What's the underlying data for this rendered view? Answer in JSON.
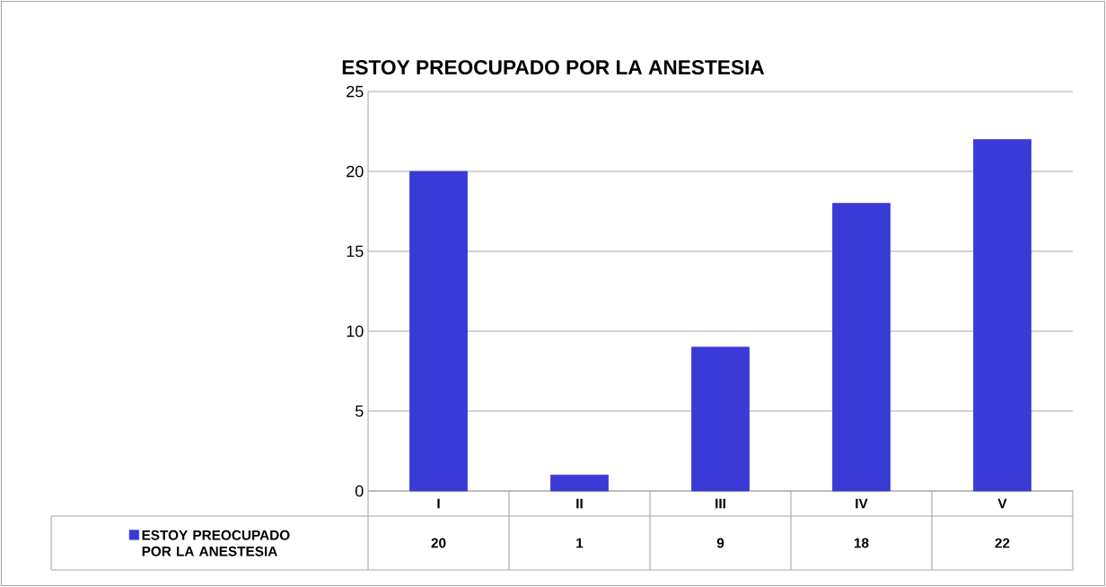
{
  "chart_data": {
    "type": "bar",
    "title": "ESTOY PREOCUPADO POR LA ANESTESIA",
    "categories": [
      "I",
      "II",
      "III",
      "IV",
      "V"
    ],
    "series": [
      {
        "name": "ESTOY PREOCUPADO POR LA ANESTESIA",
        "color": "#3a3ad6",
        "values": [
          20,
          1,
          9,
          18,
          22
        ],
        "value_labels": [
          "20",
          "1",
          "9",
          "18",
          "22"
        ]
      }
    ],
    "ylim": [
      0,
      25
    ],
    "yticks": [
      0,
      5,
      10,
      15,
      20,
      25
    ],
    "grid": "y",
    "legend": "bottom"
  }
}
